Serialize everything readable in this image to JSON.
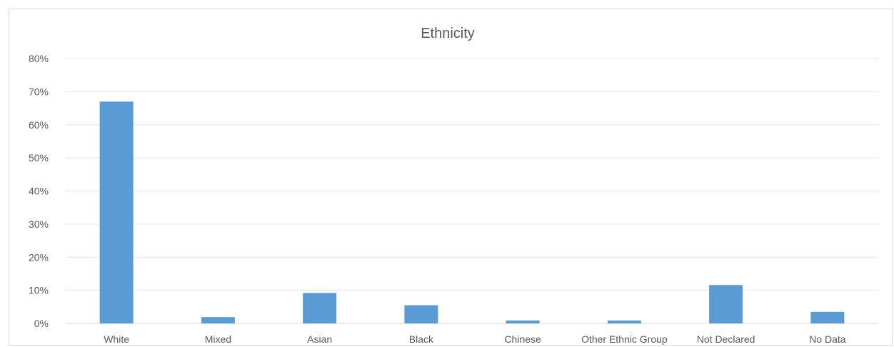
{
  "chart_data": {
    "type": "bar",
    "title": "Ethnicity",
    "xlabel": "",
    "ylabel": "",
    "categories": [
      "White",
      "Mixed",
      "Asian",
      "Black",
      "Chinese",
      "Other Ethnic Group",
      "Not Declared",
      "No Data"
    ],
    "values": [
      0.67,
      0.019,
      0.092,
      0.055,
      0.009,
      0.009,
      0.116,
      0.035
    ],
    "ylim": [
      0,
      0.8
    ],
    "yticks": [
      "0%",
      "10%",
      "20%",
      "30%",
      "40%",
      "50%",
      "60%",
      "70%",
      "80%"
    ],
    "grid": true,
    "bar_color": "#5B9BD5"
  }
}
